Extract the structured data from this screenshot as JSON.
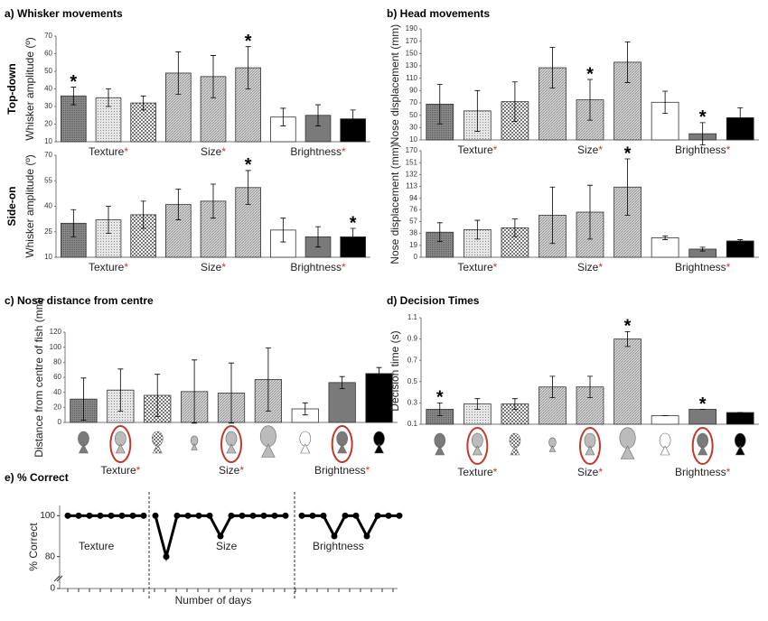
{
  "chart_data": [
    {
      "type": "bar",
      "title": "a) Whisker movements",
      "row_label": "Top-down",
      "ylabel": "Whisker amplitude (º)",
      "ylim": [
        10,
        70
      ],
      "yticks": [
        10,
        20,
        30,
        40,
        50,
        60,
        70
      ],
      "values": [
        36,
        35,
        32,
        49,
        47,
        52,
        24,
        25,
        23
      ],
      "errors": [
        5,
        5,
        4,
        12,
        12,
        12,
        5,
        6,
        5
      ],
      "significant": [
        true,
        false,
        false,
        false,
        false,
        true,
        false,
        false,
        false
      ],
      "sig_mark": "*",
      "patterns": [
        "dark",
        "dots",
        "checker",
        "hatch",
        "hatch",
        "hatch",
        "white",
        "gray",
        "black"
      ],
      "groups": [
        {
          "name": "Texture",
          "mark": "*"
        },
        {
          "name": "Size",
          "mark": "*"
        },
        {
          "name": "Brightness",
          "mark": "*"
        }
      ]
    },
    {
      "type": "bar",
      "row_label": "Side-on",
      "ylabel": "Whisker amplitude (º)",
      "ylim": [
        10,
        70
      ],
      "yticks": [
        10,
        25,
        40,
        55,
        70
      ],
      "values": [
        30,
        32,
        35,
        41,
        43,
        51,
        26,
        22,
        22
      ],
      "errors": [
        8,
        8,
        8,
        9,
        10,
        10,
        7,
        6,
        5
      ],
      "significant": [
        false,
        false,
        false,
        false,
        false,
        true,
        false,
        false,
        true
      ],
      "sig_mark": "*",
      "patterns": [
        "dark",
        "dots",
        "checker",
        "hatch",
        "hatch",
        "hatch",
        "white",
        "gray",
        "black"
      ],
      "groups": [
        {
          "name": "Texture",
          "mark": "*"
        },
        {
          "name": "Size",
          "mark": "*"
        },
        {
          "name": "Brightness",
          "mark": "*"
        }
      ]
    },
    {
      "type": "bar",
      "title": "b) Head movements",
      "ylabel": "Nose displacement (mm)",
      "ylim": [
        10,
        190
      ],
      "yticks": [
        10,
        30,
        50,
        70,
        90,
        110,
        130,
        150,
        170,
        190
      ],
      "values": [
        68,
        57,
        72,
        127,
        75,
        136,
        71,
        20,
        46
      ],
      "errors": [
        32,
        33,
        32,
        33,
        33,
        33,
        18,
        18,
        16
      ],
      "significant": [
        false,
        false,
        false,
        false,
        true,
        false,
        false,
        true,
        false
      ],
      "sig_mark": "*",
      "patterns": [
        "dark",
        "dots",
        "checker",
        "hatch",
        "hatch",
        "hatch",
        "white",
        "gray",
        "black"
      ],
      "groups": [
        {
          "name": "Texture",
          "mark": "*"
        },
        {
          "name": "Size",
          "mark": "*"
        },
        {
          "name": "Brightness",
          "mark": "*"
        }
      ]
    },
    {
      "type": "bar",
      "ylabel": "Nose displacement (mm)",
      "ylim": [
        0,
        170
      ],
      "yticks": [
        0,
        19,
        38,
        57,
        76,
        94,
        113,
        132,
        151,
        170
      ],
      "values": [
        40,
        44,
        47,
        67,
        72,
        112,
        31,
        13,
        26
      ],
      "errors": [
        15,
        15,
        14,
        45,
        43,
        45,
        3,
        3,
        2
      ],
      "significant": [
        false,
        false,
        false,
        false,
        false,
        true,
        false,
        false,
        false
      ],
      "sig_mark": "*",
      "patterns": [
        "dark",
        "dots",
        "checker",
        "hatch",
        "hatch",
        "hatch",
        "white",
        "gray",
        "black"
      ],
      "groups": [
        {
          "name": "Texture",
          "mark": "*"
        },
        {
          "name": "Size",
          "mark": "*"
        },
        {
          "name": "Brightness",
          "mark": "*"
        }
      ]
    },
    {
      "type": "bar",
      "title": "c) Nose distance from centre",
      "ylabel": "Distance from centre of fish (mm)",
      "icons": true,
      "ylim": [
        0,
        120
      ],
      "yticks": [
        0,
        20,
        40,
        60,
        80,
        100,
        120
      ],
      "values": [
        31,
        43,
        36,
        41,
        39,
        57,
        18,
        53,
        65
      ],
      "errors": [
        28,
        28,
        28,
        42,
        40,
        42,
        8,
        8,
        8
      ],
      "significant": [
        false,
        false,
        false,
        false,
        false,
        false,
        false,
        false,
        false
      ],
      "sig_mark": "*",
      "patterns": [
        "dark",
        "dots",
        "checker",
        "hatch",
        "hatch",
        "hatch",
        "white",
        "gray",
        "black"
      ],
      "groups": [
        {
          "name": "Texture",
          "mark": "*"
        },
        {
          "name": "Size",
          "mark": "*"
        },
        {
          "name": "Brightness",
          "mark": "*"
        }
      ]
    },
    {
      "type": "bar",
      "title": "d) Decision Times",
      "ylabel": "Decision time (s)",
      "icons": true,
      "ylim": [
        0.1,
        1.1
      ],
      "yticks": [
        0.1,
        0.3,
        0.5,
        0.7,
        0.9,
        1.1
      ],
      "values": [
        0.24,
        0.29,
        0.29,
        0.45,
        0.45,
        0.9,
        0.18,
        0.24,
        0.21
      ],
      "errors": [
        0.06,
        0.05,
        0.05,
        0.1,
        0.1,
        0.07,
        0,
        0,
        0
      ],
      "significant": [
        true,
        false,
        false,
        false,
        false,
        true,
        false,
        true,
        false
      ],
      "sig_mark": "*",
      "patterns": [
        "dark",
        "dots",
        "checker",
        "hatch",
        "hatch",
        "hatch",
        "white",
        "gray",
        "black"
      ],
      "groups": [
        {
          "name": "Texture",
          "mark": "*"
        },
        {
          "name": "Size",
          "mark": "*"
        },
        {
          "name": "Brightness",
          "mark": "*"
        }
      ]
    },
    {
      "type": "line",
      "title": "e) % Correct",
      "ylabel": "% Correct",
      "xlabel": "Number of days",
      "ylim": [
        0,
        105
      ],
      "yticks": [
        0,
        80,
        100
      ],
      "axis_break": [
        5,
        75
      ],
      "series": [
        {
          "name": "Texture",
          "color": "#000000",
          "values": [
            100,
            100,
            100,
            100,
            100,
            100,
            100,
            100
          ]
        },
        {
          "name": "Size",
          "color": "#000000",
          "values": [
            100,
            80,
            100,
            100,
            100,
            100,
            90,
            100,
            100,
            100,
            100,
            100,
            100
          ]
        },
        {
          "name": "Brightness",
          "color": "#000000",
          "values": [
            100,
            100,
            100,
            90,
            100,
            100,
            90,
            100,
            100,
            100
          ]
        }
      ]
    }
  ]
}
